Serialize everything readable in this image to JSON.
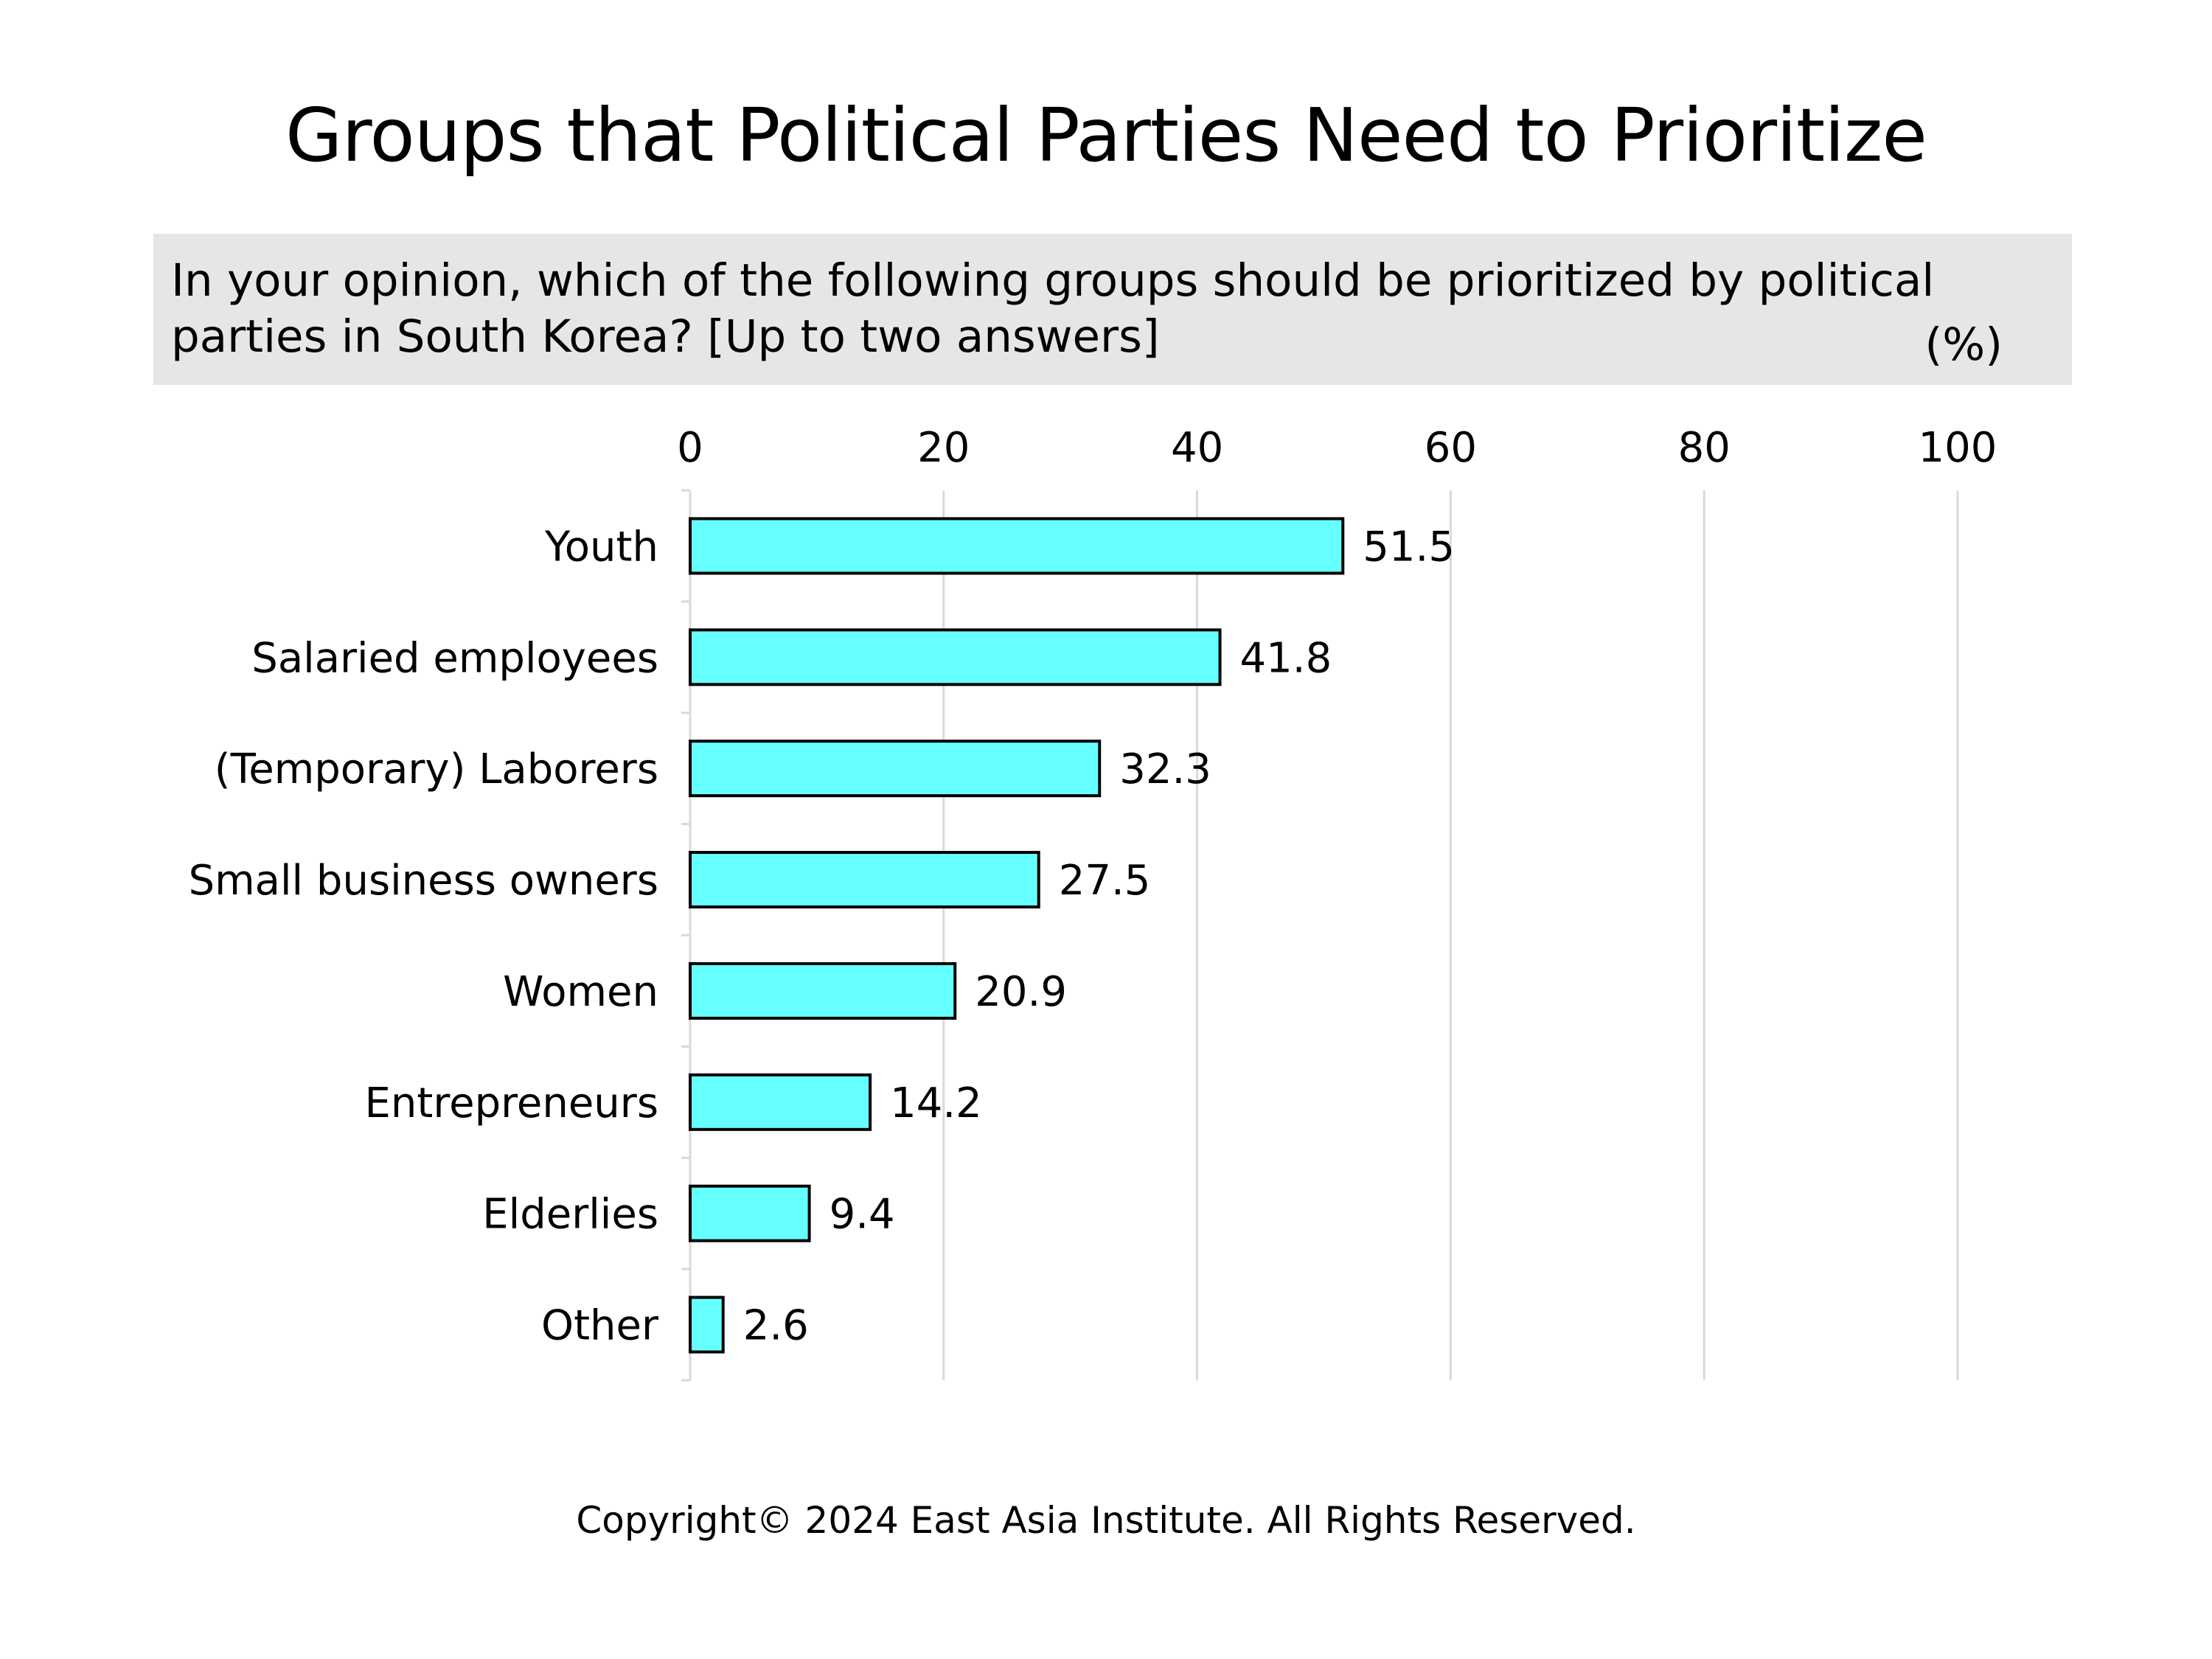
{
  "title": "Groups that Political Parties Need to Prioritize",
  "question": "In your opinion, which of the following groups should be prioritized by political parties in South Korea? [Up to two answers]",
  "unit": "(%)",
  "copyright": "Copyright© 2024 East Asia Institute. All Rights Reserved.",
  "colors": {
    "bar_fill": "#66ffff",
    "bar_stroke": "#000000",
    "grid": "#d9d9d9",
    "question_bg": "#e6e6e6"
  },
  "chart_data": {
    "type": "bar",
    "orientation": "horizontal",
    "categories": [
      "Youth",
      "Salaried employees",
      "(Temporary) Laborers",
      "Small business owners",
      "Women",
      "Entrepreneurs",
      "Elderlies",
      "Other"
    ],
    "values": [
      51.5,
      41.8,
      32.3,
      27.5,
      20.9,
      14.2,
      9.4,
      2.6
    ],
    "data_labels": [
      "51.5",
      "41.8",
      "32.3",
      "27.5",
      "20.9",
      "14.2",
      "9.4",
      "2.6"
    ],
    "xlim": [
      0,
      100
    ],
    "x_ticks": [
      "0",
      "20",
      "40",
      "60",
      "80",
      "100"
    ],
    "x_axis_position": "top",
    "grid": true
  }
}
